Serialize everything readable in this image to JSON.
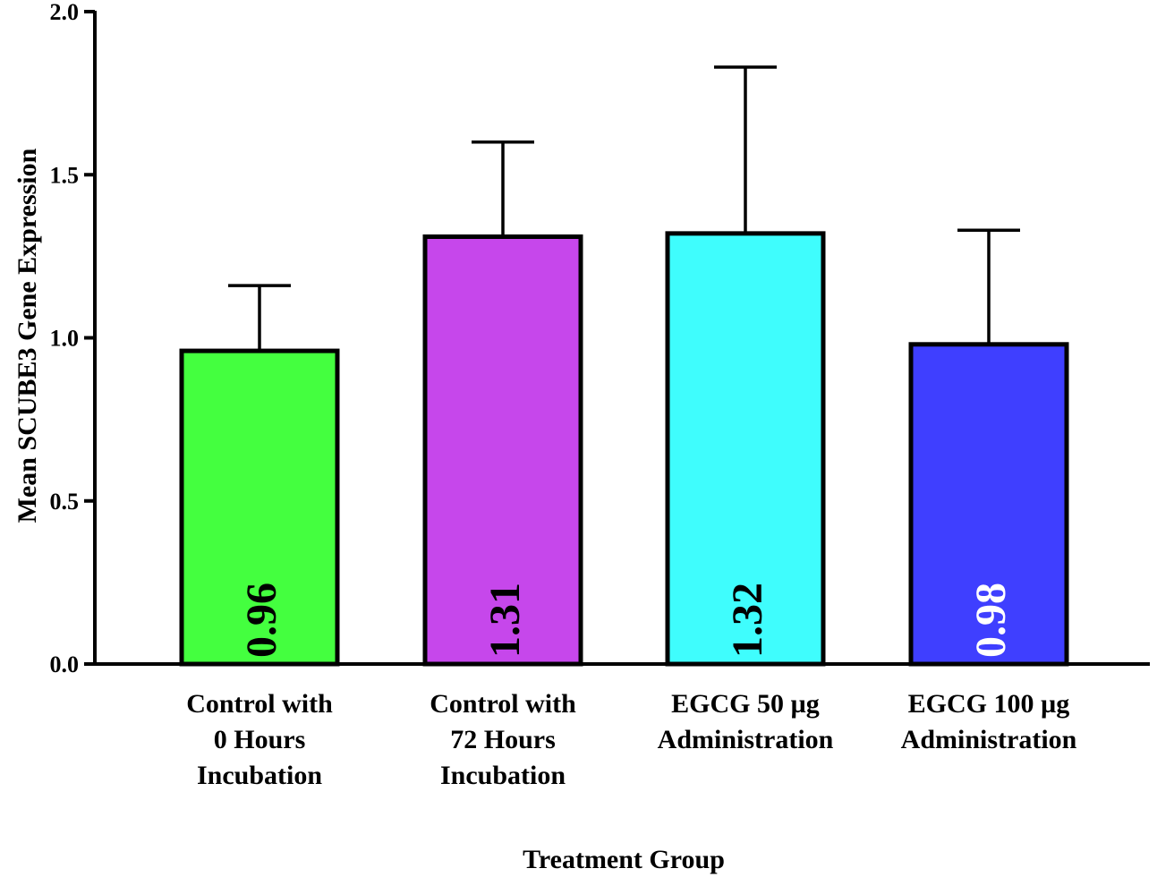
{
  "chart_data": {
    "type": "bar",
    "xlabel": "Treatment Group",
    "ylabel": "Mean SCUBE3 Gene Expression",
    "ylim": [
      0,
      2.0
    ],
    "yticks": [
      "0.0",
      "0.5",
      "1.0",
      "1.5",
      "2.0"
    ],
    "grid": false,
    "legend": "none",
    "categories": [
      [
        "Control with",
        "0 Hours",
        "Incubation"
      ],
      [
        "Control with",
        "72 Hours",
        "Incubation"
      ],
      [
        "EGCG 50 µg",
        "Administration"
      ],
      [
        "EGCG 100 µg",
        "Administration"
      ]
    ],
    "values": [
      0.96,
      1.31,
      1.32,
      0.98
    ],
    "error_upper": [
      1.16,
      1.6,
      1.83,
      1.33
    ],
    "data_labels": [
      "0.96",
      "1.31",
      "1.32",
      "0.98"
    ],
    "colors": [
      "#44ff3f",
      "#c647eb",
      "#3ffdfd",
      "#3f3fff"
    ],
    "label_colors": [
      "#000000",
      "#000000",
      "#000000",
      "#ffffff"
    ]
  }
}
